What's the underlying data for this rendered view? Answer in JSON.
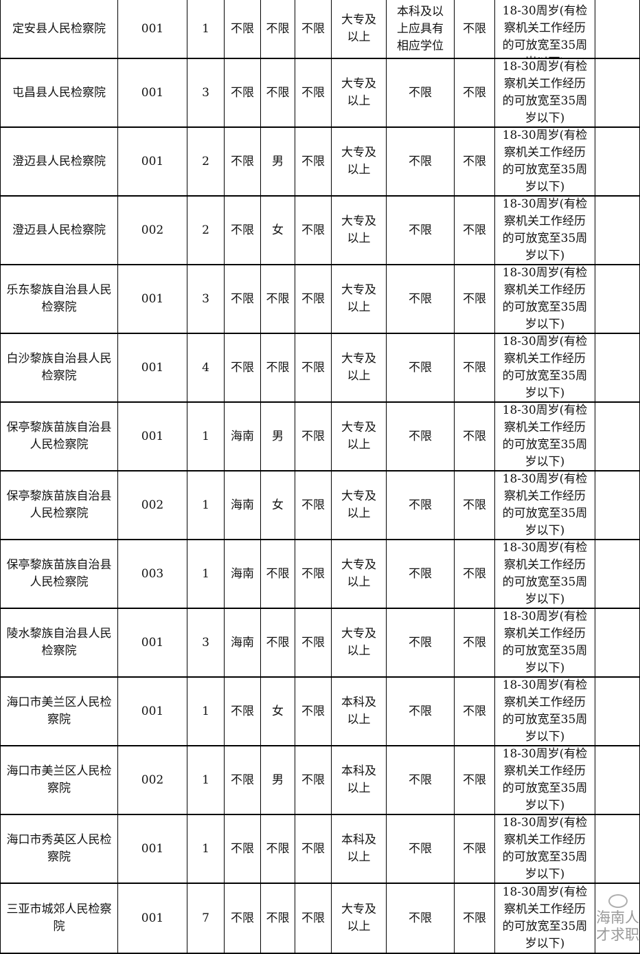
{
  "rows": [
    [
      "定安县人民检察院",
      "001",
      "1",
      "不限",
      "不限",
      "不限",
      "大专及以上",
      "本科及以上应具有相应学位",
      "不限",
      "18-30周岁(有检察机关工作经历的可放宽至35周岁以下)",
      ""
    ],
    [
      "屯昌县人民检察院",
      "001",
      "3",
      "不限",
      "不限",
      "不限",
      "大专及以上",
      "不限",
      "不限",
      "18-30周岁(有检察机关工作经历的可放宽至35周岁以下)",
      ""
    ],
    [
      "澄迈县人民检察院",
      "001",
      "2",
      "不限",
      "男",
      "不限",
      "大专及以上",
      "不限",
      "不限",
      "18-30周岁(有检察机关工作经历的可放宽至35周岁以下)",
      ""
    ],
    [
      "澄迈县人民检察院",
      "002",
      "2",
      "不限",
      "女",
      "不限",
      "大专及以上",
      "不限",
      "不限",
      "18-30周岁(有检察机关工作经历的可放宽至35周岁以下)",
      ""
    ],
    [
      "乐东黎族自治县人民检察院",
      "001",
      "3",
      "不限",
      "不限",
      "不限",
      "大专及以上",
      "不限",
      "不限",
      "18-30周岁(有检察机关工作经历的可放宽至35周岁以下)",
      ""
    ],
    [
      "白沙黎族自治县人民检察院",
      "001",
      "4",
      "不限",
      "不限",
      "不限",
      "大专及以上",
      "不限",
      "不限",
      "18-30周岁(有检察机关工作经历的可放宽至35周岁以下)",
      ""
    ],
    [
      "保亭黎族苗族自治县人民检察院",
      "001",
      "1",
      "海南",
      "男",
      "不限",
      "大专及以上",
      "不限",
      "不限",
      "18-30周岁(有检察机关工作经历的可放宽至35周岁以下)",
      ""
    ],
    [
      "保亭黎族苗族自治县人民检察院",
      "002",
      "1",
      "海南",
      "女",
      "不限",
      "大专及以上",
      "不限",
      "不限",
      "18-30周岁(有检察机关工作经历的可放宽至35周岁以下)",
      ""
    ],
    [
      "保亭黎族苗族自治县人民检察院",
      "003",
      "1",
      "海南",
      "不限",
      "不限",
      "大专及以上",
      "不限",
      "不限",
      "18-30周岁(有检察机关工作经历的可放宽至35周岁以下)",
      ""
    ],
    [
      "陵水黎族自治县人民检察院",
      "001",
      "3",
      "海南",
      "不限",
      "不限",
      "大专及以上",
      "不限",
      "不限",
      "18-30周岁(有检察机关工作经历的可放宽至35周岁以下)",
      ""
    ],
    [
      "海口市美兰区人民检察院",
      "001",
      "1",
      "不限",
      "女",
      "不限",
      "本科及以上",
      "不限",
      "不限",
      "18-30周岁(有检察机关工作经历的可放宽至35周岁以下)",
      ""
    ],
    [
      "海口市美兰区人民检察院",
      "002",
      "1",
      "不限",
      "男",
      "不限",
      "本科及以上",
      "不限",
      "不限",
      "18-30周岁(有检察机关工作经历的可放宽至35周岁以下)",
      ""
    ],
    [
      "海口市秀英区人民检察院",
      "001",
      "1",
      "不限",
      "不限",
      "不限",
      "本科及以上",
      "不限",
      "不限",
      "18-30周岁(有检察机关工作经历的可放宽至35周岁以下)",
      ""
    ],
    [
      "三亚市城郊人民检察院",
      "001",
      "7",
      "不限",
      "不限",
      "不限",
      "大专及以上",
      "不限",
      "不限",
      "18-30周岁(有检察机关工作经历的可放宽至35周岁以下)",
      ""
    ]
  ],
  "watermark": "海南人才求职"
}
